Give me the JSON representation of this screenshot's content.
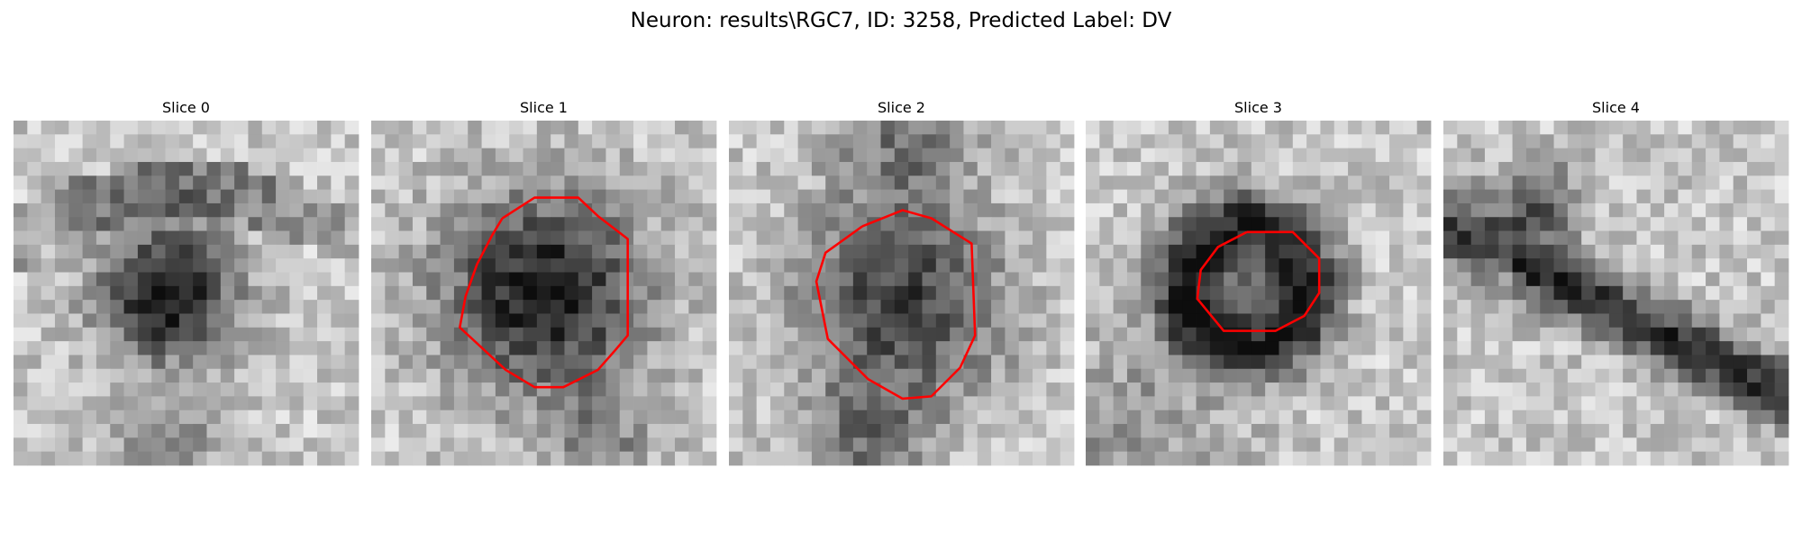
{
  "figure": {
    "title": "Neuron: results\\RGC7, ID: 3258, Predicted Label: DV",
    "panels": [
      {
        "title": "Slice 0"
      },
      {
        "title": "Slice 1"
      },
      {
        "title": "Slice 2"
      },
      {
        "title": "Slice 3"
      },
      {
        "title": "Slice 4"
      }
    ]
  }
}
